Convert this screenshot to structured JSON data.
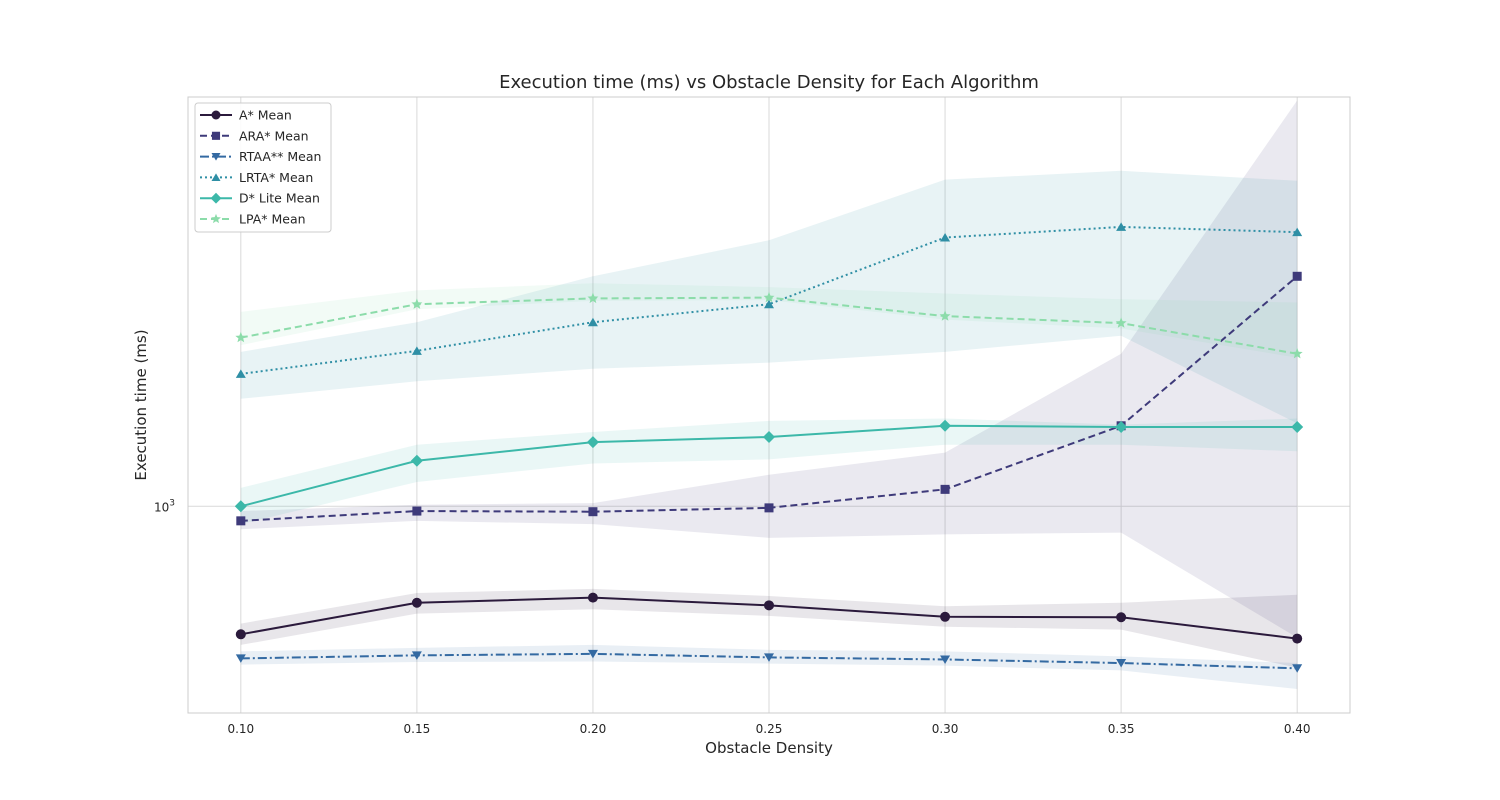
{
  "chart_data": {
    "type": "line",
    "title": "Execution time (ms) vs Obstacle Density for Each Algorithm",
    "xlabel": "Obstacle Density",
    "ylabel": "Execution time (ms)",
    "x": [
      0.1,
      0.15,
      0.2,
      0.25,
      0.3,
      0.35,
      0.4
    ],
    "x_tick_labels": [
      "0.10",
      "0.15",
      "0.20",
      "0.25",
      "0.30",
      "0.35",
      "0.40"
    ],
    "xlim": [
      0.085,
      0.415
    ],
    "y_scale": "log",
    "ylim": [
      520,
      3650
    ],
    "y_tick": {
      "value": 1000,
      "base": "10",
      "exponent": "3"
    },
    "grid": true,
    "legend_position": "top-left",
    "series": [
      {
        "name": "A* Mean",
        "color": "#2b1a3c",
        "marker": "circle",
        "dash": "solid",
        "values": [
          667,
          737,
          749,
          731,
          705,
          704,
          658
        ],
        "lower": [
          645,
          712,
          722,
          707,
          683,
          677,
          600
        ],
        "upper": [
          690,
          760,
          770,
          753,
          729,
          737,
          756
        ]
      },
      {
        "name": "ARA* Mean",
        "color": "#3e3a7a",
        "marker": "square",
        "dash": "dashed",
        "values": [
          955,
          985,
          983,
          995,
          1055,
          1290,
          2070
        ],
        "lower": [
          930,
          955,
          945,
          905,
          915,
          920,
          660
        ],
        "upper": [
          985,
          1005,
          1010,
          1105,
          1185,
          1620,
          3610
        ]
      },
      {
        "name": "RTAA** Mean",
        "color": "#346aa2",
        "marker": "triangle-down",
        "dash": "dashdot",
        "values": [
          618,
          624,
          627,
          620,
          616,
          609,
          599
        ],
        "lower": [
          606,
          611,
          612,
          608,
          604,
          595,
          561
        ],
        "upper": [
          632,
          639,
          645,
          635,
          632,
          622,
          609
        ]
      },
      {
        "name": "LRTA* Mean",
        "color": "#2f8fa5",
        "marker": "triangle-up",
        "dash": "dotted",
        "values": [
          1520,
          1635,
          1790,
          1895,
          2340,
          2420,
          2380
        ],
        "lower": [
          1405,
          1485,
          1545,
          1575,
          1630,
          1715,
          1300
        ],
        "upper": [
          1630,
          1790,
          2070,
          2320,
          2810,
          2890,
          2800
        ]
      },
      {
        "name": "D* Lite Mean",
        "color": "#3cb8a9",
        "marker": "diamond",
        "dash": "solid",
        "values": [
          1000,
          1155,
          1225,
          1245,
          1290,
          1285,
          1285
        ],
        "lower": [
          945,
          1080,
          1145,
          1160,
          1215,
          1215,
          1190
        ],
        "upper": [
          1060,
          1215,
          1265,
          1310,
          1320,
          1295,
          1320
        ]
      },
      {
        "name": "LPA* Mean",
        "color": "#8cdcaa",
        "marker": "star",
        "dash": "dashed",
        "values": [
          1705,
          1895,
          1930,
          1935,
          1825,
          1785,
          1620
        ],
        "lower": [
          1665,
          1865,
          1915,
          1920,
          1805,
          1755,
          1600
        ],
        "upper": [
          1850,
          1980,
          2025,
          2000,
          1960,
          1925,
          1905
        ]
      }
    ]
  }
}
